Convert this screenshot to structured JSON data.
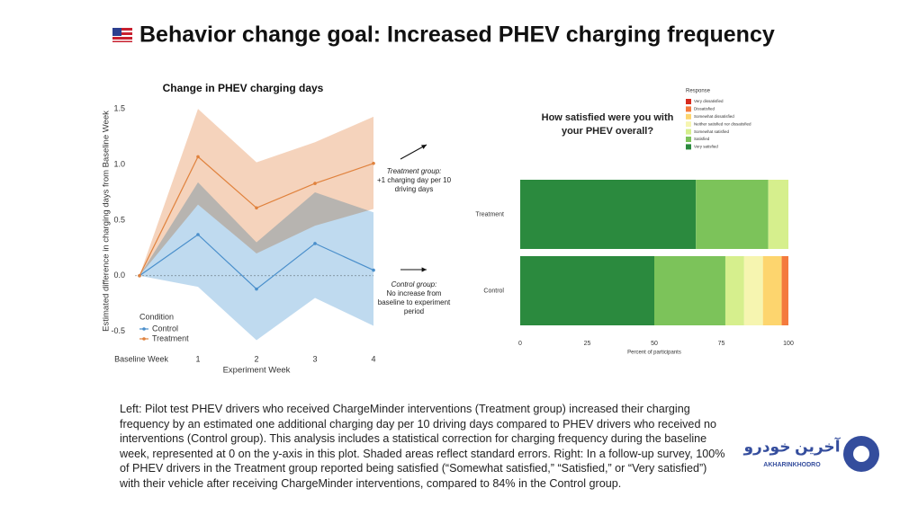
{
  "title": "Behavior change goal: Increased PHEV charging frequency",
  "chart_data": [
    {
      "type": "line",
      "title": "Change in PHEV charging days",
      "x_label": "Experiment Week",
      "y_label": "Estimated difference in charging days from Baseline Week",
      "x": [
        0,
        1,
        2,
        3,
        4
      ],
      "xlim": [
        0,
        4
      ],
      "xticks": [
        {
          "value": 0,
          "label": "Baseline Week"
        },
        1,
        2,
        3,
        4
      ],
      "ylim": [
        -0.6,
        1.55
      ],
      "yticks": [
        -0.5,
        {
          "value": 0,
          "label": "0.0"
        },
        0.5,
        {
          "value": 1,
          "label": "1.0"
        },
        1.5
      ],
      "legend_title": "Condition",
      "legend_position": "lower left",
      "series": [
        {
          "name": "Control",
          "color": "#4a8fcb",
          "band_color": "#a9cdea",
          "values": [
            0,
            0.37,
            -0.12,
            0.29,
            0.05
          ],
          "lower": [
            0,
            -0.1,
            -0.58,
            -0.2,
            -0.45
          ],
          "upper": [
            0,
            0.84,
            0.3,
            0.75,
            0.57
          ]
        },
        {
          "name": "Treatment",
          "color": "#e0823d",
          "band_color": "#f2c4a5",
          "values": [
            0,
            1.07,
            0.61,
            0.83,
            1.01
          ],
          "lower": [
            0,
            0.64,
            0.2,
            0.45,
            0.6
          ],
          "upper": [
            0,
            1.5,
            1.02,
            1.2,
            1.43
          ]
        }
      ],
      "annotations": [
        {
          "heading": "Treatment group:",
          "text": "+1 charging day per 10 driving days"
        },
        {
          "heading": "Control group:",
          "text": "No increase from baseline to experiment period"
        }
      ]
    },
    {
      "type": "stacked-barh",
      "title": "How satisfied were you with your PHEV overall?",
      "x_label": "Percent of participants",
      "categories": [
        "Treatment",
        "Control"
      ],
      "xlim": [
        0,
        100
      ],
      "xticks": [
        0,
        25,
        50,
        75,
        100
      ],
      "legend_title": "Response",
      "series": [
        {
          "name": "Very satisfied",
          "color": "#2b8a3e",
          "values": [
            65.5,
            50
          ]
        },
        {
          "name": "Satisfied",
          "color": "#7cc35a",
          "values": [
            27,
            26.5
          ]
        },
        {
          "name": "Somewhat satisfied",
          "color": "#d6ef8d",
          "values": [
            7.5,
            7
          ]
        },
        {
          "name": "Neither satisfied nor dissatisfied",
          "color": "#f6f5b0",
          "values": [
            0,
            7
          ]
        },
        {
          "name": "Somewhat dissatisfied",
          "color": "#fdd56e",
          "values": [
            0,
            7
          ]
        },
        {
          "name": "Dissatisfied",
          "color": "#f47a3d",
          "values": [
            0,
            2.5
          ]
        },
        {
          "name": "Very dissatisfied",
          "color": "#d62a1e",
          "values": [
            0,
            0
          ]
        }
      ]
    }
  ],
  "caption": [
    "Left: Pilot test PHEV drivers who received ChargeMinder interventions (Treatment group) increased their charging",
    "frequency by an estimated one additional charging day per 10 driving days compared to PHEV drivers who received no",
    "interventions (Control group). This analysis includes a statistical correction for charging frequency during the baseline",
    "week, represented at 0 on the y-axis in this plot. Shaded areas reflect standard errors. Right: In a follow-up survey, 100%",
    "of PHEV drivers in the Treatment group reported being satisfied (“Somewhat satisfied,” “Satisfied,” or “Very satisfied”)",
    "with their vehicle after receiving ChargeMinder interventions, compared to 84% in the Control group."
  ],
  "watermark": {
    "text": "آخرین خودرو",
    "brand": "AKHARINKHODRO"
  }
}
